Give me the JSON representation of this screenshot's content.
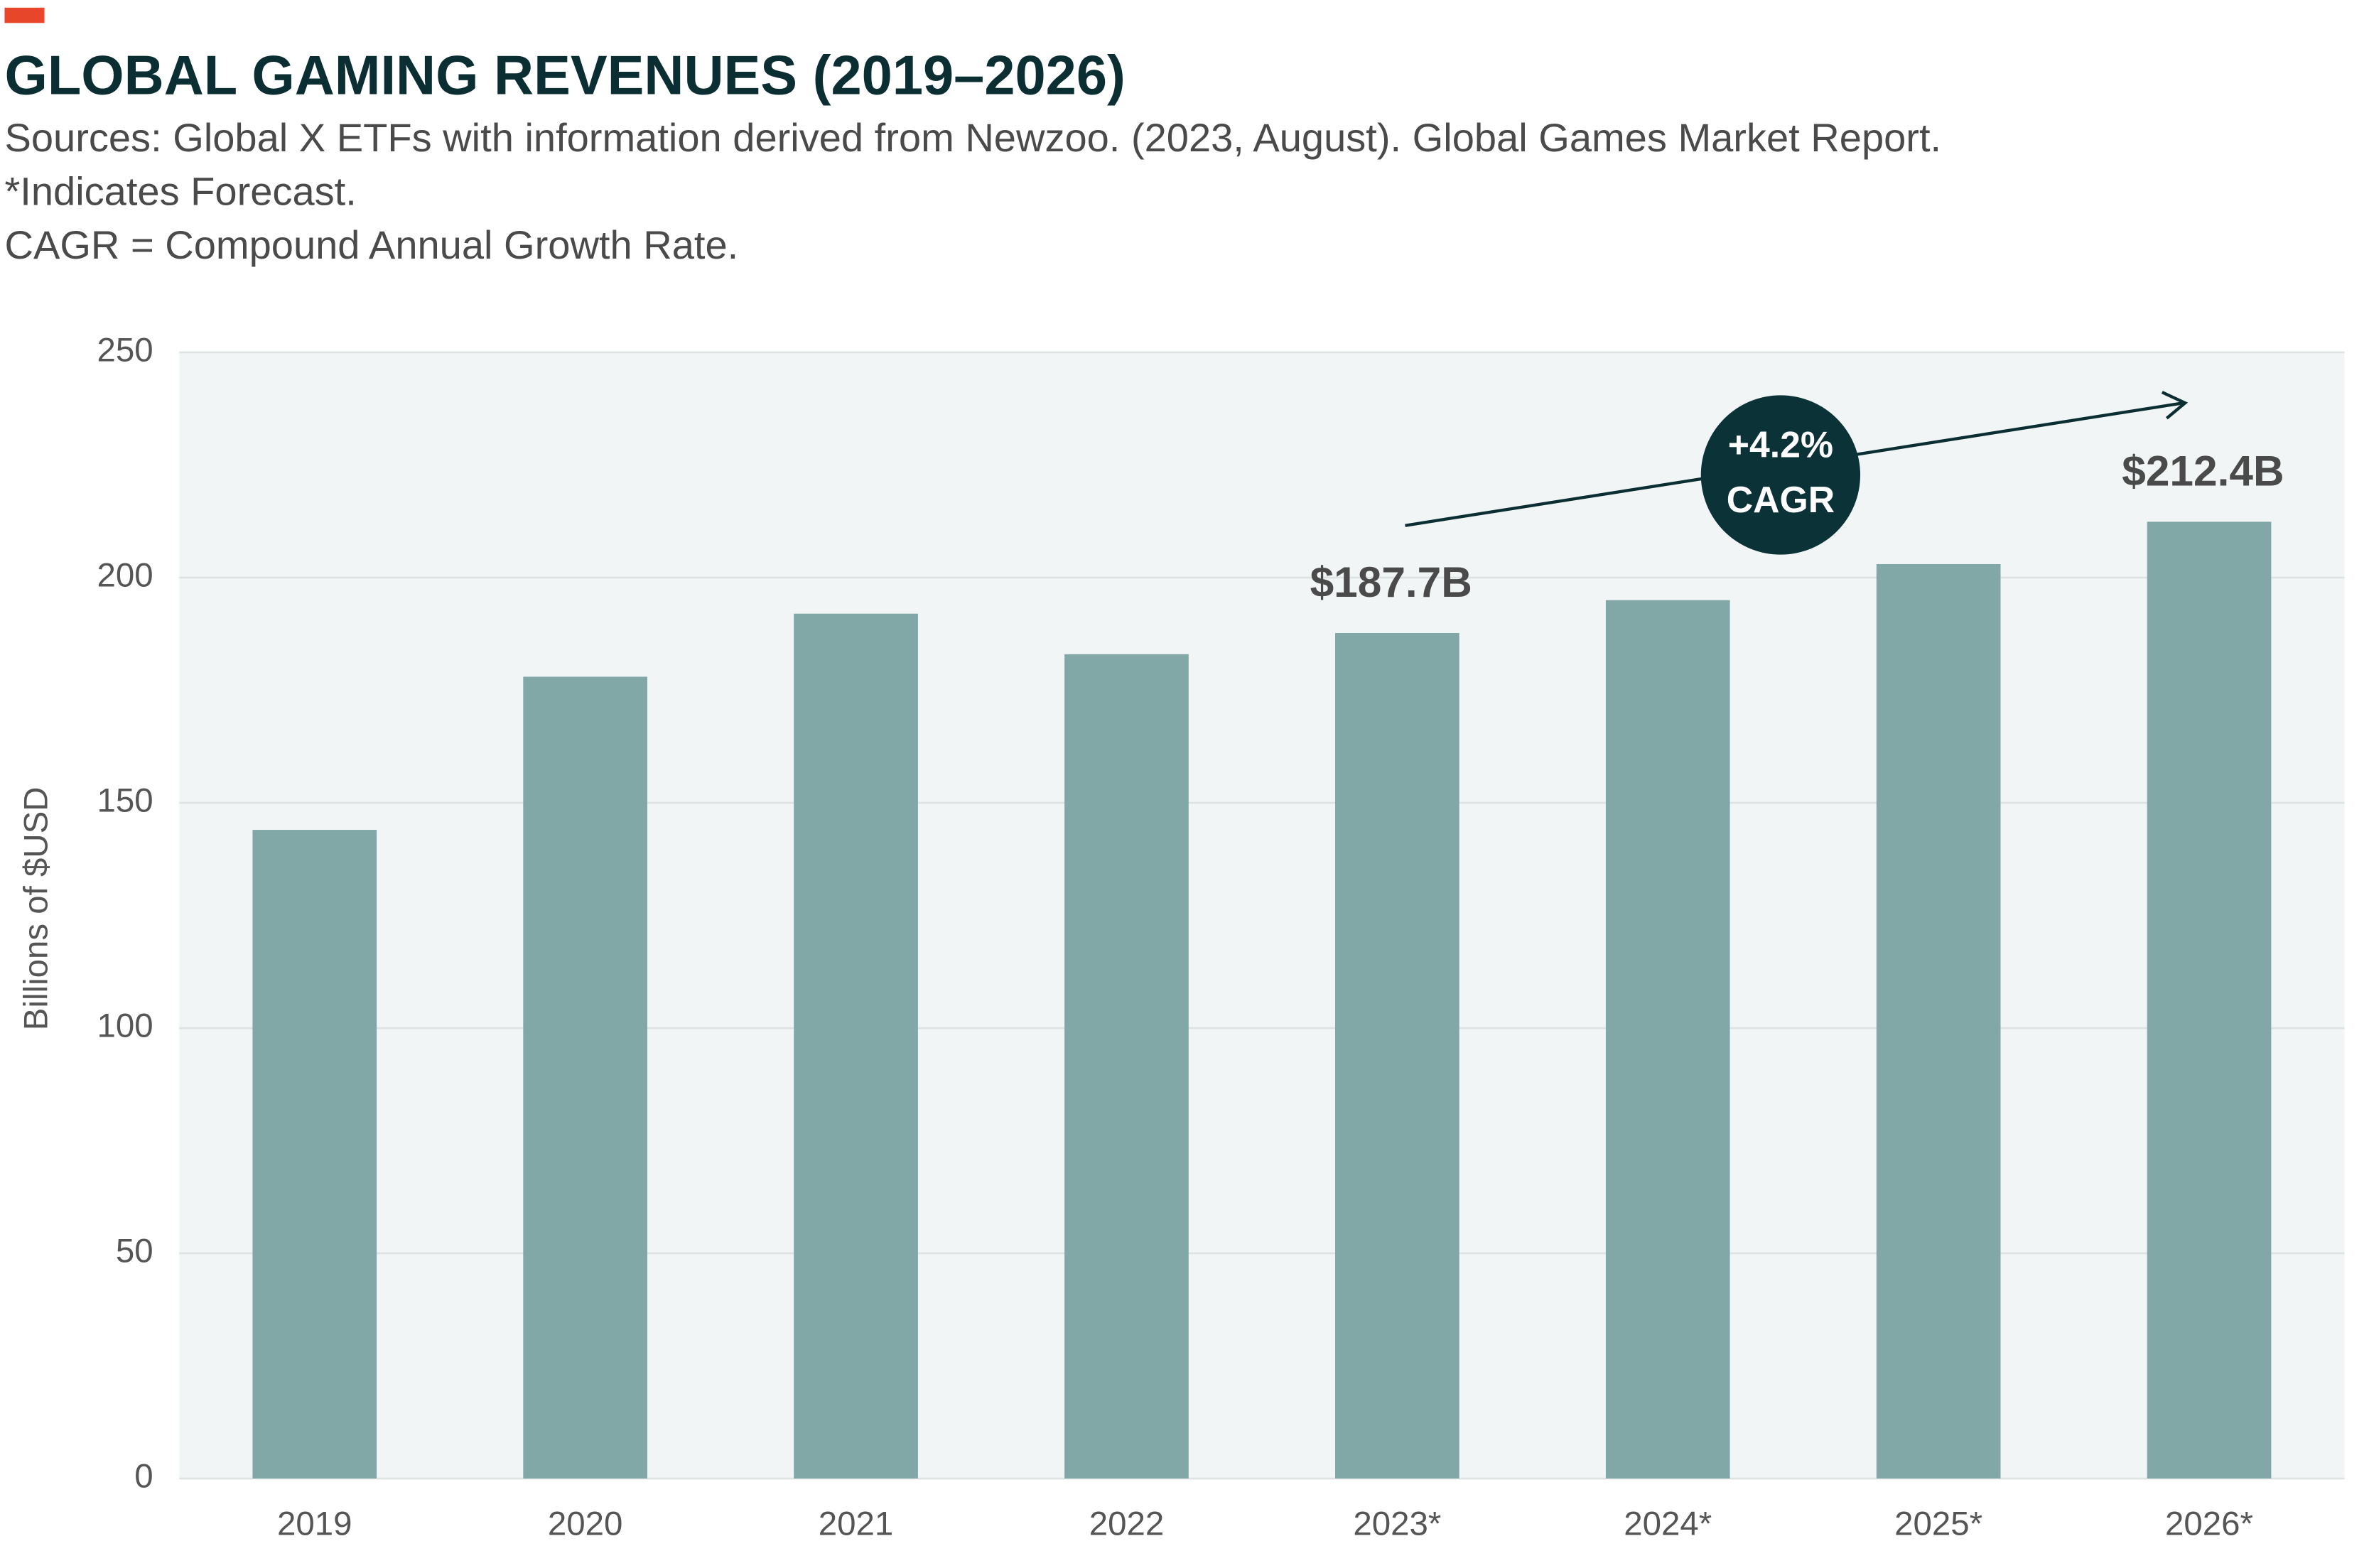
{
  "chart_data": {
    "type": "bar",
    "title": "GLOBAL GAMING REVENUES (2019–2026)",
    "subtitle": [
      "Sources: Global X ETFs with information derived from Newzoo. (2023, August). Global Games Market Report.",
      "*Indicates Forecast.",
      "CAGR = Compound Annual Growth Rate."
    ],
    "y_label": "Billions of $USD",
    "categories": [
      "2019",
      "2020",
      "2021",
      "2022",
      "2023*",
      "2024*",
      "2025*",
      "2026*"
    ],
    "values": [
      144,
      178,
      192,
      183,
      187.7,
      195,
      203,
      212.4
    ],
    "value_labels": [
      null,
      null,
      null,
      null,
      "$187.7B",
      null,
      null,
      "$212.4B"
    ],
    "color": "#81a7a7",
    "annotation": [
      "+4.2%",
      "CAGR"
    ],
    "ylim": [
      0,
      250
    ],
    "yticks": [
      0,
      50,
      100,
      150,
      200,
      250
    ],
    "grid": true
  }
}
